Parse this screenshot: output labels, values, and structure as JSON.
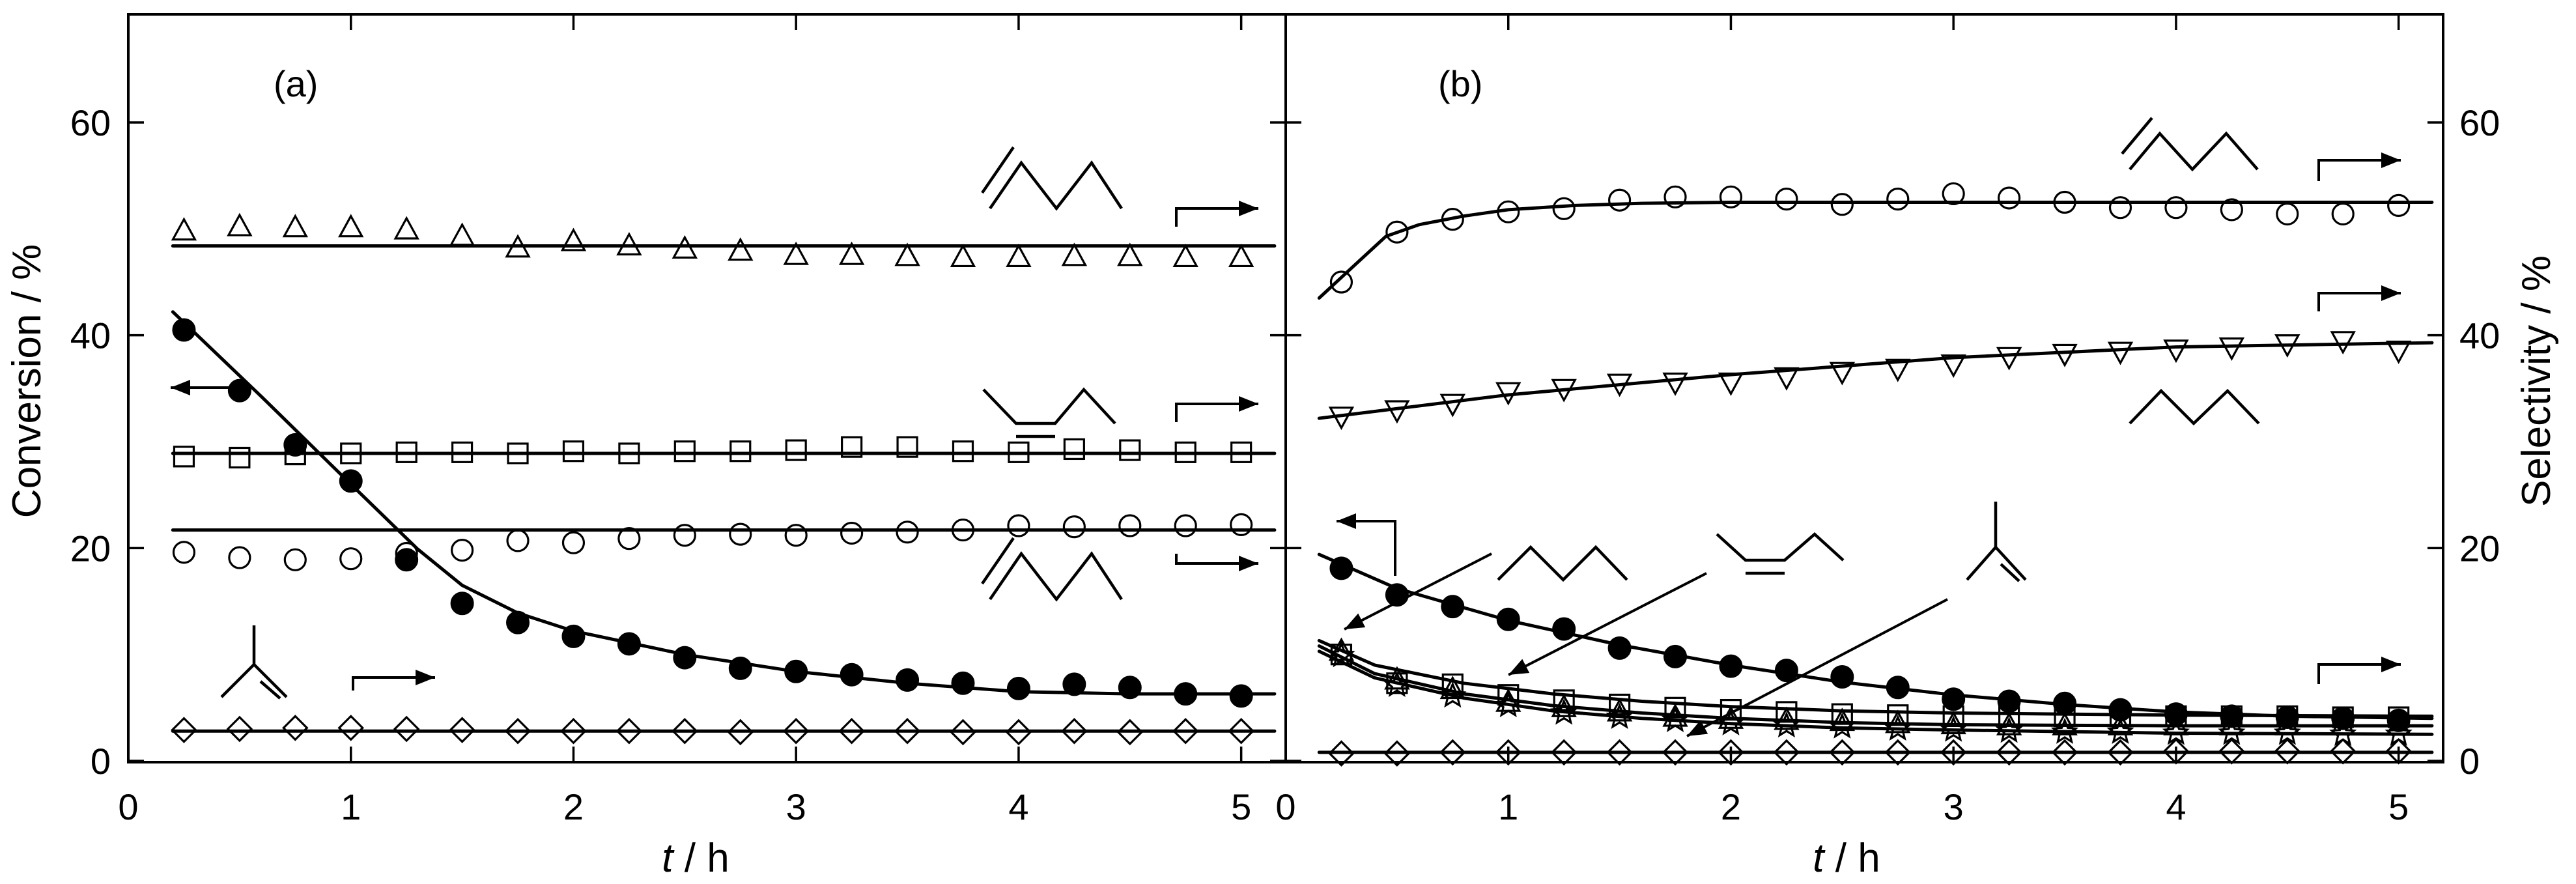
{
  "chart_data": [
    {
      "type": "scatter",
      "panel_label": "(a)",
      "xlabel_italic": "t",
      "xlabel_unit": " / h",
      "ylabel": "Conversion / %",
      "xlim": [
        0,
        5.2
      ],
      "ylim": [
        0,
        70
      ],
      "xticks": [
        "0",
        "1",
        "2",
        "3",
        "4",
        "5"
      ],
      "yticks": [
        "0",
        "20",
        "40",
        "60"
      ],
      "grid": false,
      "series": [
        {
          "marker": "filled-circle",
          "axis": "left",
          "x": [
            0.25,
            0.5,
            0.75,
            1.0,
            1.25,
            1.5,
            1.75,
            2.0,
            2.25,
            2.5,
            2.75,
            3.0,
            3.25,
            3.5,
            3.75,
            4.0,
            4.25,
            4.5,
            4.75,
            5.0
          ],
          "y": [
            40.5,
            34.8,
            29.7,
            26.3,
            18.9,
            14.8,
            13.0,
            11.7,
            11.0,
            9.7,
            8.7,
            8.4,
            8.1,
            7.6,
            7.3,
            6.8,
            7.2,
            6.9,
            6.3,
            6.1
          ],
          "fit": {
            "x": [
              0.2,
              0.6,
              1.0,
              1.3,
              1.5,
              1.75,
              2.0,
              2.5,
              3.0,
              3.5,
              4.0,
              4.5,
              5.15
            ],
            "y": [
              42.2,
              34.2,
              26.0,
              19.9,
              16.5,
              13.9,
              12.2,
              10.0,
              8.4,
              7.3,
              6.5,
              6.3,
              6.3
            ]
          }
        },
        {
          "marker": "open-triangle",
          "axis": "right",
          "x": [
            0.25,
            0.5,
            0.75,
            1.0,
            1.25,
            1.5,
            1.75,
            2.0,
            2.25,
            2.5,
            2.75,
            3.0,
            3.25,
            3.5,
            3.75,
            4.0,
            4.25,
            4.5,
            4.75,
            5.0
          ],
          "y": [
            49.8,
            50.2,
            50.1,
            50.1,
            49.9,
            49.3,
            48.2,
            48.8,
            48.4,
            48.1,
            47.9,
            47.5,
            47.5,
            47.4,
            47.3,
            47.3,
            47.4,
            47.4,
            47.3,
            47.3
          ],
          "fit": {
            "x": [
              0.2,
              5.15
            ],
            "y": [
              48.4,
              48.4
            ]
          }
        },
        {
          "marker": "open-square",
          "axis": "right",
          "x": [
            0.25,
            0.5,
            0.75,
            1.0,
            1.25,
            1.5,
            1.75,
            2.0,
            2.25,
            2.5,
            2.75,
            3.0,
            3.25,
            3.5,
            3.75,
            4.0,
            4.25,
            4.5,
            4.75,
            5.0
          ],
          "y": [
            28.6,
            28.5,
            28.8,
            28.9,
            29.0,
            29.0,
            28.9,
            29.1,
            28.9,
            29.1,
            29.1,
            29.2,
            29.5,
            29.5,
            29.1,
            29.0,
            29.3,
            29.2,
            29.0,
            29.0
          ],
          "fit": {
            "x": [
              0.2,
              5.15
            ],
            "y": [
              28.9,
              28.9
            ]
          }
        },
        {
          "marker": "open-circle",
          "axis": "right",
          "x": [
            0.25,
            0.5,
            0.75,
            1.0,
            1.25,
            1.5,
            1.75,
            2.0,
            2.25,
            2.5,
            2.75,
            3.0,
            3.25,
            3.5,
            3.75,
            4.0,
            4.25,
            4.5,
            4.75,
            5.0
          ],
          "y": [
            19.6,
            19.1,
            18.9,
            19.0,
            19.5,
            19.8,
            20.7,
            20.5,
            20.9,
            21.2,
            21.3,
            21.2,
            21.4,
            21.5,
            21.7,
            22.1,
            22.0,
            22.1,
            22.1,
            22.2
          ],
          "fit": {
            "x": [
              0.2,
              5.15
            ],
            "y": [
              21.7,
              21.7
            ]
          }
        },
        {
          "marker": "open-diamond",
          "axis": "right",
          "x": [
            0.25,
            0.5,
            0.75,
            1.0,
            1.25,
            1.5,
            1.75,
            2.0,
            2.25,
            2.5,
            2.75,
            3.0,
            3.25,
            3.5,
            3.75,
            4.0,
            4.25,
            4.5,
            4.75,
            5.0
          ],
          "y": [
            2.9,
            3.0,
            3.1,
            3.1,
            3.0,
            2.9,
            2.8,
            2.8,
            2.8,
            2.8,
            2.7,
            2.8,
            2.8,
            2.8,
            2.7,
            2.7,
            2.8,
            2.7,
            2.8,
            2.8
          ],
          "fit": {
            "x": [
              0.2,
              5.15
            ],
            "y": [
              2.8,
              2.8
            ]
          }
        }
      ]
    },
    {
      "type": "scatter",
      "panel_label": "(b)",
      "xlabel_italic": "t",
      "xlabel_unit": " / h",
      "ylabel": "Selectivity / %",
      "xlim": [
        0,
        5.2
      ],
      "ylim": [
        0,
        70
      ],
      "xticks": [
        "0",
        "1",
        "2",
        "3",
        "4",
        "5"
      ],
      "yticks": [
        "0",
        "20",
        "40",
        "60"
      ],
      "grid": false,
      "series": [
        {
          "marker": "open-circle",
          "axis": "right",
          "x": [
            0.25,
            0.5,
            0.75,
            1.0,
            1.25,
            1.5,
            1.75,
            2.0,
            2.25,
            2.5,
            2.75,
            3.0,
            3.25,
            3.5,
            3.75,
            4.0,
            4.25,
            4.5,
            4.75,
            5.0
          ],
          "y": [
            45.0,
            49.7,
            50.9,
            51.6,
            51.9,
            52.7,
            53.0,
            53.0,
            52.8,
            52.3,
            52.8,
            53.3,
            52.9,
            52.5,
            52.0,
            52.0,
            51.8,
            51.4,
            51.4,
            52.2
          ],
          "fit": {
            "x": [
              0.15,
              0.3,
              0.45,
              0.6,
              0.8,
              1.0,
              1.3,
              1.6,
              2.0,
              2.5,
              3.0,
              4.0,
              5.15
            ],
            "y": [
              43.5,
              46.4,
              49.3,
              50.4,
              51.2,
              51.8,
              52.2,
              52.4,
              52.5,
              52.5,
              52.5,
              52.5,
              52.5
            ]
          }
        },
        {
          "marker": "open-inverted-triangle",
          "axis": "right",
          "x": [
            0.25,
            0.5,
            0.75,
            1.0,
            1.25,
            1.5,
            1.75,
            2.0,
            2.25,
            2.5,
            2.75,
            3.0,
            3.25,
            3.5,
            3.75,
            4.0,
            4.25,
            4.5,
            4.75,
            5.0
          ],
          "y": [
            32.4,
            33.0,
            33.6,
            34.7,
            35.0,
            35.5,
            35.6,
            35.6,
            36.1,
            36.6,
            36.9,
            37.3,
            38.0,
            38.3,
            38.5,
            38.7,
            38.9,
            39.2,
            39.5,
            38.6
          ],
          "fit": {
            "x": [
              0.15,
              1.0,
              2.0,
              3.0,
              4.0,
              5.15
            ],
            "y": [
              32.2,
              34.4,
              36.3,
              37.9,
              38.9,
              39.3
            ]
          }
        },
        {
          "marker": "filled-circle",
          "axis": "left",
          "x": [
            0.25,
            0.5,
            0.75,
            1.0,
            1.25,
            1.5,
            1.75,
            2.0,
            2.25,
            2.5,
            2.75,
            3.0,
            3.25,
            3.5,
            3.75,
            4.0,
            4.25,
            4.5,
            4.75,
            5.0
          ],
          "y": [
            18.1,
            15.6,
            14.5,
            13.3,
            12.4,
            10.6,
            9.8,
            8.9,
            8.5,
            7.9,
            6.9,
            5.8,
            5.6,
            5.4,
            4.8,
            4.4,
            4.2,
            4.1,
            4.0,
            3.8
          ],
          "fit": {
            "x": [
              0.15,
              0.5,
              1.0,
              1.5,
              2.0,
              2.5,
              3.0,
              3.5,
              4.0,
              4.5,
              5.15
            ],
            "y": [
              19.4,
              16.2,
              13.2,
              10.9,
              9.0,
              7.4,
              6.2,
              5.3,
              4.6,
              4.2,
              4.0
            ]
          }
        },
        {
          "marker": "open-square",
          "axis": "right",
          "x": [
            0.25,
            0.5,
            0.75,
            1.0,
            1.25,
            1.5,
            1.75,
            2.0,
            2.25,
            2.5,
            2.75,
            3.0,
            3.25,
            3.5,
            3.75,
            4.0,
            4.25,
            4.5,
            4.75,
            5.0
          ],
          "y": [
            10.0,
            7.3,
            7.2,
            6.2,
            5.7,
            5.3,
            5.0,
            4.8,
            4.6,
            4.4,
            4.3,
            4.2,
            4.2,
            4.2,
            4.2,
            4.2,
            4.2,
            4.2,
            4.1,
            4.1
          ],
          "fit": {
            "x": [
              0.15,
              0.4,
              0.8,
              1.2,
              1.6,
              2.0,
              2.5,
              3.0,
              4.0,
              5.15
            ],
            "y": [
              11.3,
              9.0,
              7.3,
              6.3,
              5.6,
              5.1,
              4.7,
              4.5,
              4.3,
              4.2
            ]
          }
        },
        {
          "marker": "open-triangle",
          "axis": "right",
          "x": [
            0.25,
            0.5,
            0.75,
            1.0,
            1.25,
            1.5,
            1.75,
            2.0,
            2.25,
            2.5,
            2.75,
            3.0,
            3.25,
            3.5,
            3.75,
            4.0,
            4.25,
            4.5,
            4.75,
            5.0
          ],
          "y": [
            10.3,
            7.6,
            6.7,
            5.5,
            5.0,
            4.6,
            4.1,
            3.9,
            3.8,
            3.7,
            3.5,
            3.4,
            3.3,
            3.3,
            3.3,
            3.3,
            3.3,
            3.3,
            3.3,
            3.3
          ],
          "fit": {
            "x": [
              0.15,
              0.4,
              0.8,
              1.2,
              1.6,
              2.0,
              2.5,
              3.0,
              4.0,
              5.15
            ],
            "y": [
              10.8,
              8.2,
              6.3,
              5.2,
              4.5,
              4.0,
              3.6,
              3.4,
              3.3,
              3.3
            ]
          }
        },
        {
          "marker": "open-star",
          "axis": "right",
          "x": [
            0.25,
            0.5,
            0.75,
            1.0,
            1.25,
            1.5,
            1.75,
            2.0,
            2.25,
            2.5,
            2.75,
            3.0,
            3.25,
            3.5,
            3.75,
            4.0,
            4.25,
            4.5,
            4.75,
            5.0
          ],
          "y": [
            9.9,
            7.1,
            6.1,
            5.2,
            4.5,
            4.1,
            3.8,
            3.5,
            3.3,
            3.2,
            3.0,
            2.9,
            2.8,
            2.7,
            2.7,
            2.6,
            2.6,
            2.6,
            2.5,
            2.5
          ],
          "fit": {
            "x": [
              0.15,
              0.4,
              0.8,
              1.2,
              1.6,
              2.0,
              2.5,
              3.0,
              4.0,
              5.15
            ],
            "y": [
              10.3,
              7.8,
              5.9,
              4.7,
              4.0,
              3.5,
              3.1,
              2.9,
              2.6,
              2.5
            ]
          }
        },
        {
          "marker": "open-diamond",
          "axis": "right",
          "x": [
            0.25,
            0.5,
            0.75,
            1.0,
            1.25,
            1.5,
            1.75,
            2.0,
            2.25,
            2.5,
            2.75,
            3.0,
            3.25,
            3.5,
            3.75,
            4.0,
            4.25,
            4.5,
            4.75,
            5.0
          ],
          "y": [
            0.7,
            0.7,
            0.8,
            0.8,
            0.8,
            0.8,
            0.8,
            0.8,
            0.8,
            0.8,
            0.8,
            0.8,
            0.8,
            0.8,
            0.8,
            0.9,
            0.9,
            0.9,
            0.9,
            0.9
          ],
          "fit": {
            "x": [
              0.15,
              5.15
            ],
            "y": [
              0.8,
              0.8
            ]
          }
        }
      ]
    }
  ]
}
